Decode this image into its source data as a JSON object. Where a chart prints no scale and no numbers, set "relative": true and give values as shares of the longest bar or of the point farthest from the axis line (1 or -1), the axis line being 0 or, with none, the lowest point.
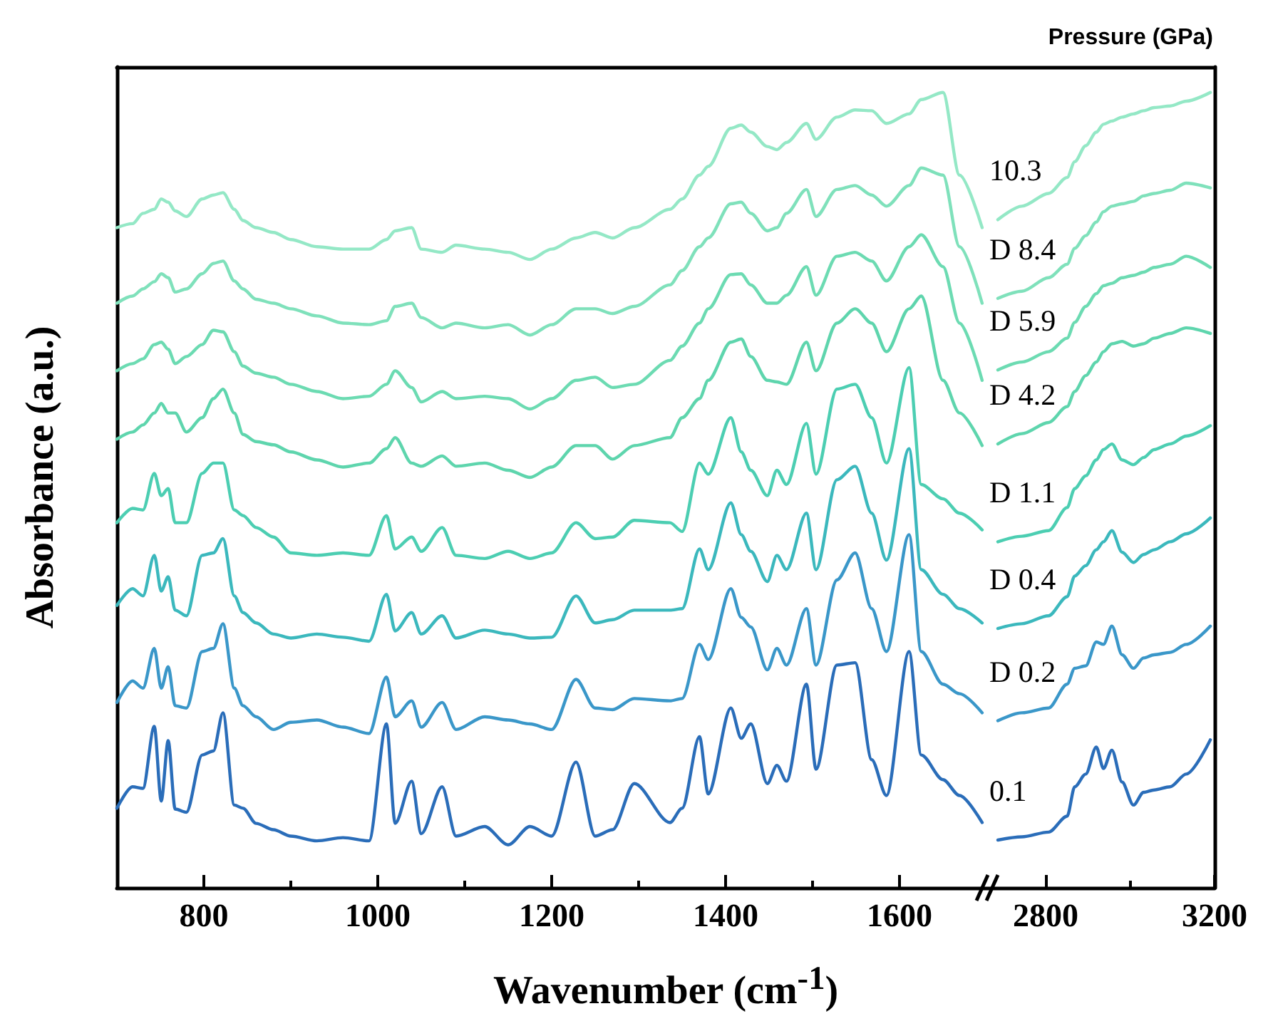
{
  "chart_data": [
    {
      "type": "line",
      "relative": true,
      "ylabel": "Absorbance (a.u.)",
      "xlabel": "Wavenumber (cm$^{-1}$)",
      "xlim": [
        700,
        1700
      ],
      "xticks": [
        800,
        {
          "value": 900,
          "label": null
        },
        1000,
        {
          "value": 1100,
          "label": null
        },
        1200,
        {
          "value": 1300,
          "label": null
        },
        1400,
        {
          "value": 1500,
          "label": null
        },
        1600
      ],
      "x": [
        700,
        718,
        730,
        743,
        751,
        759,
        767,
        780,
        798,
        811,
        822,
        835,
        845,
        860,
        880,
        900,
        930,
        960,
        990,
        1010,
        1020,
        1039,
        1050,
        1074,
        1090,
        1123,
        1150,
        1175,
        1200,
        1228,
        1250,
        1270,
        1295,
        1336,
        1350,
        1370,
        1380,
        1406,
        1418,
        1429,
        1448,
        1459,
        1470,
        1493,
        1504,
        1528,
        1549,
        1568,
        1585,
        1611,
        1625,
        1650,
        1669,
        1695
      ],
      "series": [
        {
          "color": "#2a6db9",
          "values": [
            0.1,
            0.127,
            0.125,
            0.203,
            0.109,
            0.185,
            0.099,
            0.095,
            0.167,
            0.172,
            0.22,
            0.104,
            0.1,
            0.081,
            0.073,
            0.065,
            0.059,
            0.063,
            0.059,
            0.206,
            0.081,
            0.134,
            0.068,
            0.127,
            0.065,
            0.077,
            0.054,
            0.077,
            0.065,
            0.158,
            0.065,
            0.073,
            0.131,
            0.082,
            0.1,
            0.19,
            0.118,
            0.226,
            0.188,
            0.206,
            0.131,
            0.154,
            0.134,
            0.256,
            0.149,
            0.28,
            0.283,
            0.161,
            0.116,
            0.297,
            0.167,
            0.136,
            0.116,
            0.082
          ]
        },
        {
          "color": "#3a97c9",
          "values": [
            0.233,
            0.26,
            0.251,
            0.301,
            0.251,
            0.278,
            0.229,
            0.226,
            0.297,
            0.301,
            0.332,
            0.251,
            0.229,
            0.215,
            0.199,
            0.208,
            0.211,
            0.202,
            0.194,
            0.265,
            0.215,
            0.235,
            0.202,
            0.233,
            0.199,
            0.215,
            0.211,
            0.206,
            0.199,
            0.262,
            0.226,
            0.224,
            0.238,
            0.235,
            0.238,
            0.306,
            0.287,
            0.376,
            0.34,
            0.328,
            0.274,
            0.301,
            0.28,
            0.351,
            0.28,
            0.387,
            0.421,
            0.351,
            0.297,
            0.444,
            0.297,
            0.256,
            0.244,
            0.22
          ]
        },
        {
          "color": "#3bb8bd",
          "values": [
            0.355,
            0.376,
            0.367,
            0.418,
            0.373,
            0.391,
            0.349,
            0.342,
            0.418,
            0.421,
            0.439,
            0.367,
            0.346,
            0.333,
            0.319,
            0.314,
            0.319,
            0.315,
            0.31,
            0.369,
            0.323,
            0.346,
            0.319,
            0.342,
            0.314,
            0.324,
            0.319,
            0.314,
            0.315,
            0.367,
            0.333,
            0.337,
            0.349,
            0.349,
            0.351,
            0.426,
            0.4,
            0.484,
            0.444,
            0.423,
            0.385,
            0.418,
            0.4,
            0.471,
            0.4,
            0.513,
            0.53,
            0.471,
            0.412,
            0.552,
            0.4,
            0.369,
            0.351,
            0.333
          ]
        },
        {
          "color": "#4cceb2",
          "values": [
            0.459,
            0.477,
            0.475,
            0.521,
            0.493,
            0.502,
            0.459,
            0.459,
            0.521,
            0.534,
            0.534,
            0.475,
            0.468,
            0.453,
            0.441,
            0.421,
            0.418,
            0.421,
            0.418,
            0.468,
            0.426,
            0.441,
            0.423,
            0.453,
            0.418,
            0.414,
            0.423,
            0.414,
            0.421,
            0.459,
            0.439,
            0.441,
            0.462,
            0.459,
            0.448,
            0.534,
            0.52,
            0.591,
            0.548,
            0.525,
            0.493,
            0.525,
            0.507,
            0.584,
            0.52,
            0.627,
            0.633,
            0.591,
            0.534,
            0.654,
            0.507,
            0.489,
            0.471,
            0.45
          ]
        },
        {
          "color": "#5ed5ad",
          "values": [
            0.564,
            0.573,
            0.582,
            0.597,
            0.609,
            0.597,
            0.597,
            0.573,
            0.591,
            0.615,
            0.627,
            0.597,
            0.57,
            0.561,
            0.557,
            0.548,
            0.538,
            0.529,
            0.534,
            0.552,
            0.566,
            0.534,
            0.53,
            0.543,
            0.53,
            0.534,
            0.525,
            0.516,
            0.529,
            0.556,
            0.556,
            0.539,
            0.556,
            0.566,
            0.591,
            0.615,
            0.638,
            0.686,
            0.69,
            0.668,
            0.638,
            0.636,
            0.633,
            0.686,
            0.65,
            0.71,
            0.728,
            0.71,
            0.674,
            0.728,
            0.744,
            0.638,
            0.597,
            0.556
          ]
        },
        {
          "color": "#6cdbb2",
          "values": [
            0.65,
            0.659,
            0.665,
            0.683,
            0.686,
            0.677,
            0.659,
            0.668,
            0.683,
            0.701,
            0.699,
            0.674,
            0.656,
            0.647,
            0.642,
            0.633,
            0.624,
            0.615,
            0.618,
            0.633,
            0.65,
            0.629,
            0.611,
            0.624,
            0.615,
            0.618,
            0.615,
            0.602,
            0.615,
            0.638,
            0.642,
            0.629,
            0.633,
            0.663,
            0.681,
            0.71,
            0.728,
            0.771,
            0.772,
            0.758,
            0.735,
            0.735,
            0.745,
            0.781,
            0.745,
            0.794,
            0.799,
            0.788,
            0.763,
            0.806,
            0.821,
            0.781,
            0.71,
            0.638
          ]
        },
        {
          "color": "#7fe1bb",
          "values": [
            0.735,
            0.744,
            0.753,
            0.762,
            0.772,
            0.767,
            0.749,
            0.753,
            0.772,
            0.785,
            0.788,
            0.763,
            0.753,
            0.74,
            0.735,
            0.728,
            0.719,
            0.71,
            0.708,
            0.713,
            0.731,
            0.735,
            0.717,
            0.704,
            0.71,
            0.704,
            0.708,
            0.695,
            0.708,
            0.728,
            0.728,
            0.722,
            0.731,
            0.758,
            0.776,
            0.806,
            0.817,
            0.86,
            0.862,
            0.848,
            0.826,
            0.83,
            0.848,
            0.878,
            0.844,
            0.878,
            0.883,
            0.871,
            0.857,
            0.883,
            0.905,
            0.896,
            0.806,
            0.735
          ]
        },
        {
          "color": "#94e8c6",
          "values": [
            0.83,
            0.835,
            0.848,
            0.853,
            0.866,
            0.862,
            0.851,
            0.844,
            0.866,
            0.871,
            0.874,
            0.853,
            0.839,
            0.83,
            0.824,
            0.815,
            0.806,
            0.803,
            0.803,
            0.815,
            0.826,
            0.83,
            0.803,
            0.799,
            0.808,
            0.803,
            0.799,
            0.79,
            0.803,
            0.817,
            0.824,
            0.817,
            0.83,
            0.853,
            0.866,
            0.896,
            0.907,
            0.955,
            0.959,
            0.95,
            0.932,
            0.928,
            0.937,
            0.961,
            0.941,
            0.969,
            0.978,
            0.977,
            0.961,
            0.973,
            0.991,
            1.0,
            0.896,
            0.83
          ]
        }
      ]
    },
    {
      "type": "line",
      "relative": true,
      "legend_title": "Pressure (GPa)",
      "xlim": [
        2660,
        3200
      ],
      "xticks": [
        2800,
        {
          "value": 3000,
          "label": null
        },
        3200
      ],
      "x": [
        2687,
        2744,
        2807,
        2851,
        2869,
        2895,
        2920,
        2937,
        2957,
        2981,
        3008,
        3032,
        3057,
        3095,
        3133,
        3190
      ],
      "series": [
        {
          "name": "0.1",
          "color": "#2a6db9",
          "values": [
            0.06,
            0.064,
            0.07,
            0.09,
            0.127,
            0.143,
            0.177,
            0.15,
            0.173,
            0.133,
            0.104,
            0.12,
            0.123,
            0.127,
            0.143,
            0.186
          ]
        },
        {
          "name": "D 0.2",
          "color": "#3a97c9",
          "values": [
            0.21,
            0.22,
            0.226,
            0.256,
            0.276,
            0.279,
            0.309,
            0.306,
            0.329,
            0.293,
            0.276,
            0.289,
            0.293,
            0.296,
            0.306,
            0.329
          ]
        },
        {
          "name": "D 0.4",
          "color": "#3bb8bd",
          "values": [
            0.326,
            0.332,
            0.342,
            0.366,
            0.392,
            0.405,
            0.425,
            0.435,
            0.449,
            0.422,
            0.409,
            0.419,
            0.425,
            0.435,
            0.445,
            0.465
          ]
        },
        {
          "name": "D 1.1",
          "color": "#4cceb2",
          "values": [
            0.435,
            0.442,
            0.449,
            0.478,
            0.502,
            0.518,
            0.538,
            0.551,
            0.558,
            0.538,
            0.532,
            0.541,
            0.551,
            0.558,
            0.568,
            0.581
          ]
        },
        {
          "name": "D 4.2",
          "color": "#5ed5ad",
          "values": [
            0.558,
            0.571,
            0.585,
            0.605,
            0.624,
            0.644,
            0.661,
            0.674,
            0.684,
            0.687,
            0.681,
            0.684,
            0.691,
            0.697,
            0.704,
            0.697
          ]
        },
        {
          "name": "D 5.9",
          "color": "#6cdbb2",
          "values": [
            0.651,
            0.661,
            0.674,
            0.691,
            0.711,
            0.731,
            0.747,
            0.757,
            0.76,
            0.767,
            0.77,
            0.774,
            0.78,
            0.784,
            0.794,
            0.78
          ]
        },
        {
          "name": "D 8.4",
          "color": "#7fe1bb",
          "values": [
            0.741,
            0.75,
            0.767,
            0.784,
            0.804,
            0.82,
            0.837,
            0.85,
            0.857,
            0.86,
            0.863,
            0.87,
            0.873,
            0.877,
            0.886,
            0.88
          ]
        },
        {
          "name": "10.3",
          "color": "#94e8c6",
          "values": [
            0.84,
            0.857,
            0.873,
            0.893,
            0.913,
            0.933,
            0.95,
            0.96,
            0.964,
            0.969,
            0.973,
            0.977,
            0.981,
            0.983,
            0.989,
            1.0
          ]
        }
      ]
    }
  ]
}
